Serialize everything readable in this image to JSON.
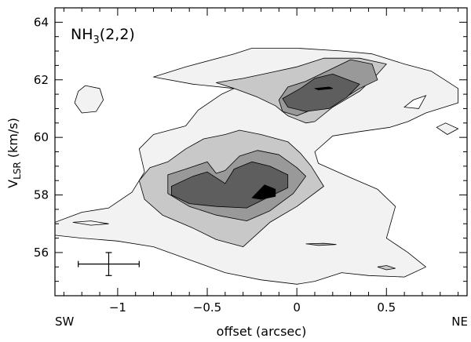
{
  "chart_data": {
    "type": "contour",
    "xlabel": "offset (arcsec)",
    "ylabel": {
      "main": "V",
      "sub": "LSR",
      "rest": " (km/s)"
    },
    "panel_label": {
      "main": "NH",
      "sub": "3",
      "rest": "(2,2)"
    },
    "corner_labels": {
      "left": "SW",
      "right": "NE"
    },
    "xlim": [
      -1.35,
      0.95
    ],
    "ylim": [
      54.5,
      64.5
    ],
    "x_ticks": [
      -1,
      -0.5,
      0,
      0.5
    ],
    "x_tick_labels": [
      "−1",
      "−0.5",
      "0",
      "0.5"
    ],
    "y_ticks": [
      56,
      58,
      60,
      62,
      64
    ],
    "y_tick_labels": [
      "56",
      "58",
      "60",
      "62",
      "64"
    ],
    "levels": [
      {
        "level": 1,
        "fill": "#f2f2f2"
      },
      {
        "level": 2,
        "fill": "#c8c8c8"
      },
      {
        "level": 3,
        "fill": "#999999"
      },
      {
        "level": 4,
        "fill": "#5e5e5e"
      },
      {
        "level": 5,
        "fill": "#000000"
      }
    ],
    "contours": [
      {
        "level": 1,
        "points": [
          [
            -1.35,
            57.05
          ],
          [
            -1.2,
            57.4
          ],
          [
            -1.05,
            57.55
          ],
          [
            -0.92,
            58.1
          ],
          [
            -0.85,
            58.8
          ],
          [
            -0.88,
            59.6
          ],
          [
            -0.8,
            60.1
          ],
          [
            -0.62,
            60.4
          ],
          [
            -0.55,
            60.95
          ],
          [
            -0.42,
            61.5
          ],
          [
            -0.35,
            61.7
          ],
          [
            -0.58,
            61.85
          ],
          [
            -0.8,
            62.1
          ],
          [
            -0.62,
            62.45
          ],
          [
            -0.35,
            62.9
          ],
          [
            -0.25,
            63.1
          ],
          [
            0.0,
            63.1
          ],
          [
            0.25,
            63.0
          ],
          [
            0.42,
            62.9
          ],
          [
            0.6,
            62.55
          ],
          [
            0.75,
            62.3
          ],
          [
            0.9,
            61.7
          ],
          [
            0.9,
            61.2
          ],
          [
            0.72,
            60.85
          ],
          [
            0.62,
            60.55
          ],
          [
            0.52,
            60.35
          ],
          [
            0.35,
            60.2
          ],
          [
            0.2,
            60.05
          ],
          [
            0.1,
            59.5
          ],
          [
            0.12,
            59.1
          ],
          [
            0.3,
            58.6
          ],
          [
            0.45,
            58.2
          ],
          [
            0.55,
            57.6
          ],
          [
            0.5,
            56.5
          ],
          [
            0.62,
            56.0
          ],
          [
            0.72,
            55.5
          ],
          [
            0.6,
            55.15
          ],
          [
            0.4,
            55.2
          ],
          [
            0.25,
            55.3
          ],
          [
            0.1,
            55.0
          ],
          [
            0.0,
            54.9
          ],
          [
            -0.2,
            55.05
          ],
          [
            -0.4,
            55.3
          ],
          [
            -0.6,
            55.75
          ],
          [
            -0.8,
            56.2
          ],
          [
            -1.0,
            56.4
          ],
          [
            -1.2,
            56.5
          ],
          [
            -1.35,
            56.6
          ]
        ]
      },
      {
        "level": 1,
        "points": [
          [
            -1.18,
            61.8
          ],
          [
            -1.1,
            61.7
          ],
          [
            -1.08,
            61.3
          ],
          [
            -1.12,
            60.9
          ],
          [
            -1.2,
            60.85
          ],
          [
            -1.24,
            61.2
          ],
          [
            -1.22,
            61.6
          ]
        ]
      },
      {
        "level": 2,
        "points": [
          [
            -0.82,
            58.95
          ],
          [
            -0.72,
            59.15
          ],
          [
            -0.62,
            59.6
          ],
          [
            -0.52,
            59.95
          ],
          [
            -0.4,
            60.1
          ],
          [
            -0.32,
            60.25
          ],
          [
            -0.2,
            60.1
          ],
          [
            -0.05,
            59.85
          ],
          [
            0.02,
            59.45
          ],
          [
            0.08,
            59.0
          ],
          [
            0.15,
            58.3
          ],
          [
            0.0,
            57.6
          ],
          [
            -0.15,
            57.05
          ],
          [
            -0.3,
            56.2
          ],
          [
            -0.45,
            56.45
          ],
          [
            -0.58,
            56.85
          ],
          [
            -0.75,
            57.3
          ],
          [
            -0.85,
            57.85
          ],
          [
            -0.88,
            58.5
          ]
        ]
      },
      {
        "level": 2,
        "points": [
          [
            -0.45,
            61.9
          ],
          [
            -0.3,
            62.05
          ],
          [
            -0.15,
            62.25
          ],
          [
            0.0,
            62.45
          ],
          [
            0.15,
            62.75
          ],
          [
            0.35,
            62.75
          ],
          [
            0.5,
            62.55
          ],
          [
            0.45,
            62.2
          ],
          [
            0.35,
            61.6
          ],
          [
            0.2,
            61.05
          ],
          [
            0.1,
            60.55
          ],
          [
            0.05,
            60.5
          ],
          [
            -0.05,
            60.75
          ],
          [
            -0.12,
            61.1
          ],
          [
            -0.22,
            61.4
          ],
          [
            -0.35,
            61.7
          ]
        ]
      },
      {
        "level": 3,
        "points": [
          [
            -0.72,
            58.7
          ],
          [
            -0.62,
            58.9
          ],
          [
            -0.5,
            59.15
          ],
          [
            -0.45,
            58.75
          ],
          [
            -0.4,
            58.85
          ],
          [
            -0.32,
            59.35
          ],
          [
            -0.22,
            59.55
          ],
          [
            -0.1,
            59.4
          ],
          [
            0.0,
            58.95
          ],
          [
            0.05,
            58.65
          ],
          [
            -0.02,
            58.05
          ],
          [
            -0.15,
            57.45
          ],
          [
            -0.28,
            57.1
          ],
          [
            -0.45,
            57.3
          ],
          [
            -0.6,
            57.6
          ],
          [
            -0.72,
            58.05
          ]
        ]
      },
      {
        "level": 3,
        "points": [
          [
            -0.05,
            61.75
          ],
          [
            0.05,
            61.95
          ],
          [
            0.15,
            62.25
          ],
          [
            0.3,
            62.7
          ],
          [
            0.42,
            62.55
          ],
          [
            0.45,
            62.0
          ],
          [
            0.35,
            61.7
          ],
          [
            0.25,
            61.3
          ],
          [
            0.12,
            61.05
          ],
          [
            0.0,
            60.75
          ],
          [
            -0.08,
            60.9
          ],
          [
            -0.1,
            61.3
          ]
        ]
      },
      {
        "level": 4,
        "points": [
          [
            -0.7,
            58.3
          ],
          [
            -0.58,
            58.65
          ],
          [
            -0.5,
            58.8
          ],
          [
            -0.4,
            58.4
          ],
          [
            -0.35,
            58.9
          ],
          [
            -0.25,
            59.15
          ],
          [
            -0.15,
            59.0
          ],
          [
            -0.05,
            58.7
          ],
          [
            -0.05,
            58.25
          ],
          [
            -0.15,
            57.95
          ],
          [
            -0.28,
            57.55
          ],
          [
            -0.45,
            57.6
          ],
          [
            -0.6,
            57.7
          ],
          [
            -0.7,
            58.0
          ]
        ]
      },
      {
        "level": 4,
        "points": [
          [
            -0.08,
            61.35
          ],
          [
            0.02,
            61.7
          ],
          [
            0.1,
            62.05
          ],
          [
            0.2,
            62.2
          ],
          [
            0.35,
            61.85
          ],
          [
            0.28,
            61.4
          ],
          [
            0.18,
            61.0
          ],
          [
            0.05,
            60.9
          ],
          [
            -0.05,
            61.05
          ]
        ]
      },
      {
        "level": 5,
        "points": [
          [
            -0.25,
            57.9
          ],
          [
            -0.18,
            58.35
          ],
          [
            -0.12,
            58.2
          ],
          [
            -0.12,
            57.95
          ],
          [
            -0.2,
            57.85
          ]
        ]
      },
      {
        "level": 5,
        "points": [
          [
            0.1,
            61.7
          ],
          [
            0.18,
            61.75
          ],
          [
            0.2,
            61.7
          ],
          [
            0.12,
            61.65
          ]
        ]
      }
    ],
    "holes": [
      {
        "points": [
          [
            0.6,
            61.05
          ],
          [
            0.65,
            61.3
          ],
          [
            0.72,
            61.45
          ],
          [
            0.68,
            61.0
          ]
        ]
      }
    ],
    "islands": [
      {
        "level": 1,
        "points": [
          [
            0.78,
            60.35
          ],
          [
            0.83,
            60.5
          ],
          [
            0.9,
            60.3
          ],
          [
            0.84,
            60.1
          ]
        ]
      },
      {
        "level": 1,
        "points": [
          [
            -1.25,
            57.05
          ],
          [
            -1.15,
            57.1
          ],
          [
            -1.05,
            57.0
          ],
          [
            -1.15,
            56.95
          ]
        ]
      },
      {
        "level": 2,
        "points": [
          [
            0.45,
            55.5
          ],
          [
            0.5,
            55.55
          ],
          [
            0.55,
            55.45
          ],
          [
            0.5,
            55.4
          ]
        ]
      },
      {
        "level": 2,
        "points": [
          [
            0.05,
            56.3
          ],
          [
            0.15,
            56.32
          ],
          [
            0.22,
            56.28
          ],
          [
            0.12,
            56.25
          ]
        ]
      }
    ],
    "error_bar": {
      "x": -1.05,
      "y": 55.6,
      "dx": 0.17,
      "dy": 0.4
    }
  }
}
